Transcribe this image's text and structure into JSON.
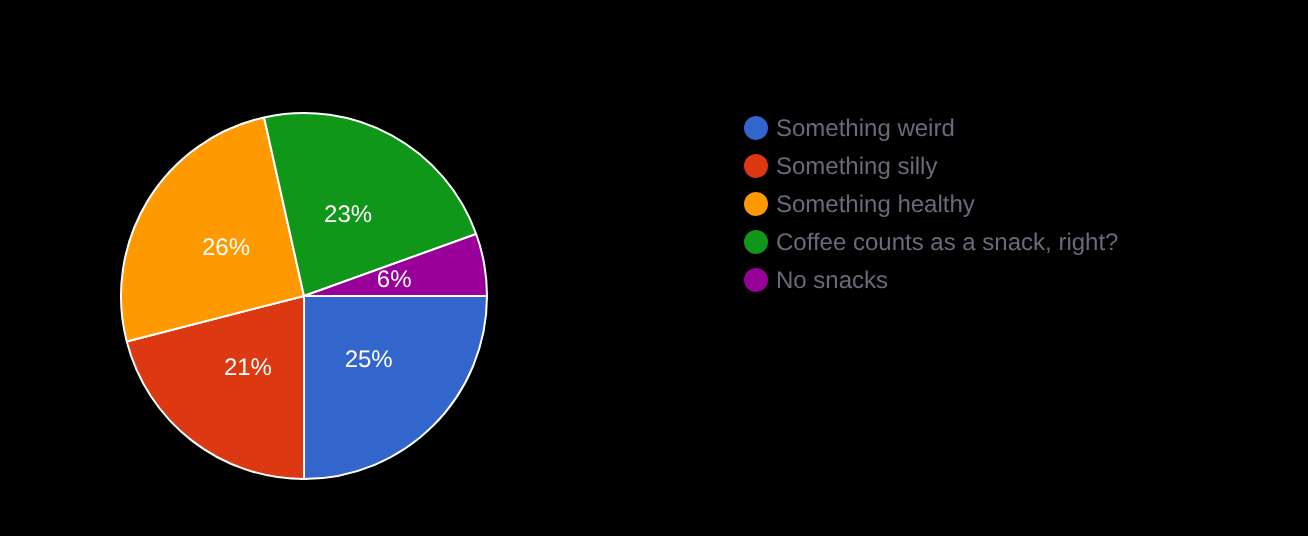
{
  "chart_data": {
    "type": "pie",
    "categories": [
      "Something weird",
      "Something silly",
      "Something healthy",
      "Coffee counts as a snack, right?",
      "No snacks"
    ],
    "values": [
      25,
      21,
      25.5,
      23,
      5.5
    ],
    "value_labels": [
      "25%",
      "21%",
      "26%",
      "23%",
      "6%"
    ],
    "colors": [
      "#3366cc",
      "#dc3912",
      "#ff9900",
      "#109618",
      "#990099"
    ],
    "legend": "right"
  }
}
